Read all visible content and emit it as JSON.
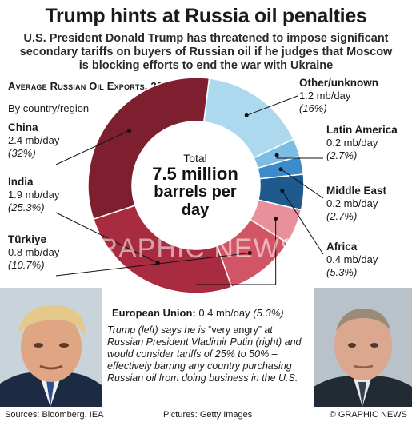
{
  "headline": "Trump hints at Russia oil penalties",
  "standfirst": "U.S. President Donald Trump has threatened to impose significant secondary tariffs on buyers of Russian oil if he judges that Moscow is blocking efforts to end the war with Ukraine",
  "chart_data": {
    "type": "pie",
    "title": "Average Russian Oil Exports, 2024",
    "subtitle": "By country/region",
    "unit": "mb/day",
    "center": {
      "label": "Total",
      "value": "7.5 million",
      "unit": "barrels per day"
    },
    "slices": [
      {
        "name": "China",
        "value": 2.4,
        "value_text": "2.4 mb/day",
        "percent": 32,
        "percent_text": "(32%)",
        "color": "#7d1f2e"
      },
      {
        "name": "India",
        "value": 1.9,
        "value_text": "1.9 mb/day",
        "percent": 25.3,
        "percent_text": "(25.3%)",
        "color": "#a92b3f"
      },
      {
        "name": "Türkiye",
        "value": 0.8,
        "value_text": "0.8 mb/day",
        "percent": 10.7,
        "percent_text": "(10.7%)",
        "color": "#d25565"
      },
      {
        "name": "European Union:",
        "value": 0.4,
        "value_text": "0.4 mb/day",
        "percent": 5.3,
        "percent_text": "(5.3%)",
        "color": "#e9919b"
      },
      {
        "name": "Africa",
        "value": 0.4,
        "value_text": "0.4 mb/day",
        "percent": 5.3,
        "percent_text": "(5.3%)",
        "color": "#1e5a8e"
      },
      {
        "name": "Middle East",
        "value": 0.2,
        "value_text": "0.2 mb/day",
        "percent": 2.7,
        "percent_text": "(2.7%)",
        "color": "#3a8ccc"
      },
      {
        "name": "Latin America",
        "value": 0.2,
        "value_text": "0.2 mb/day",
        "percent": 2.7,
        "percent_text": "(2.7%)",
        "color": "#7cbde6"
      },
      {
        "name": "Other/unknown",
        "value": 1.2,
        "value_text": "1.2 mb/day",
        "percent": 16,
        "percent_text": "(16%)",
        "color": "#add9ef"
      }
    ]
  },
  "caption_parts": {
    "a": "Trump (left) says he is ",
    "b": "“very angry”",
    "c": " at Russian President Vladimir Putin (right) and would consider tariffs of 25% to 50% – effectively barring any country purchasing Russian oil from doing business in the U.S."
  },
  "footer": {
    "sources": "Sources: Bloomberg, IEA",
    "pictures": "Pictures: Getty Images",
    "copyright": "© GRAPHIC NEWS"
  },
  "watermark": "GRAPHIC NEWS"
}
